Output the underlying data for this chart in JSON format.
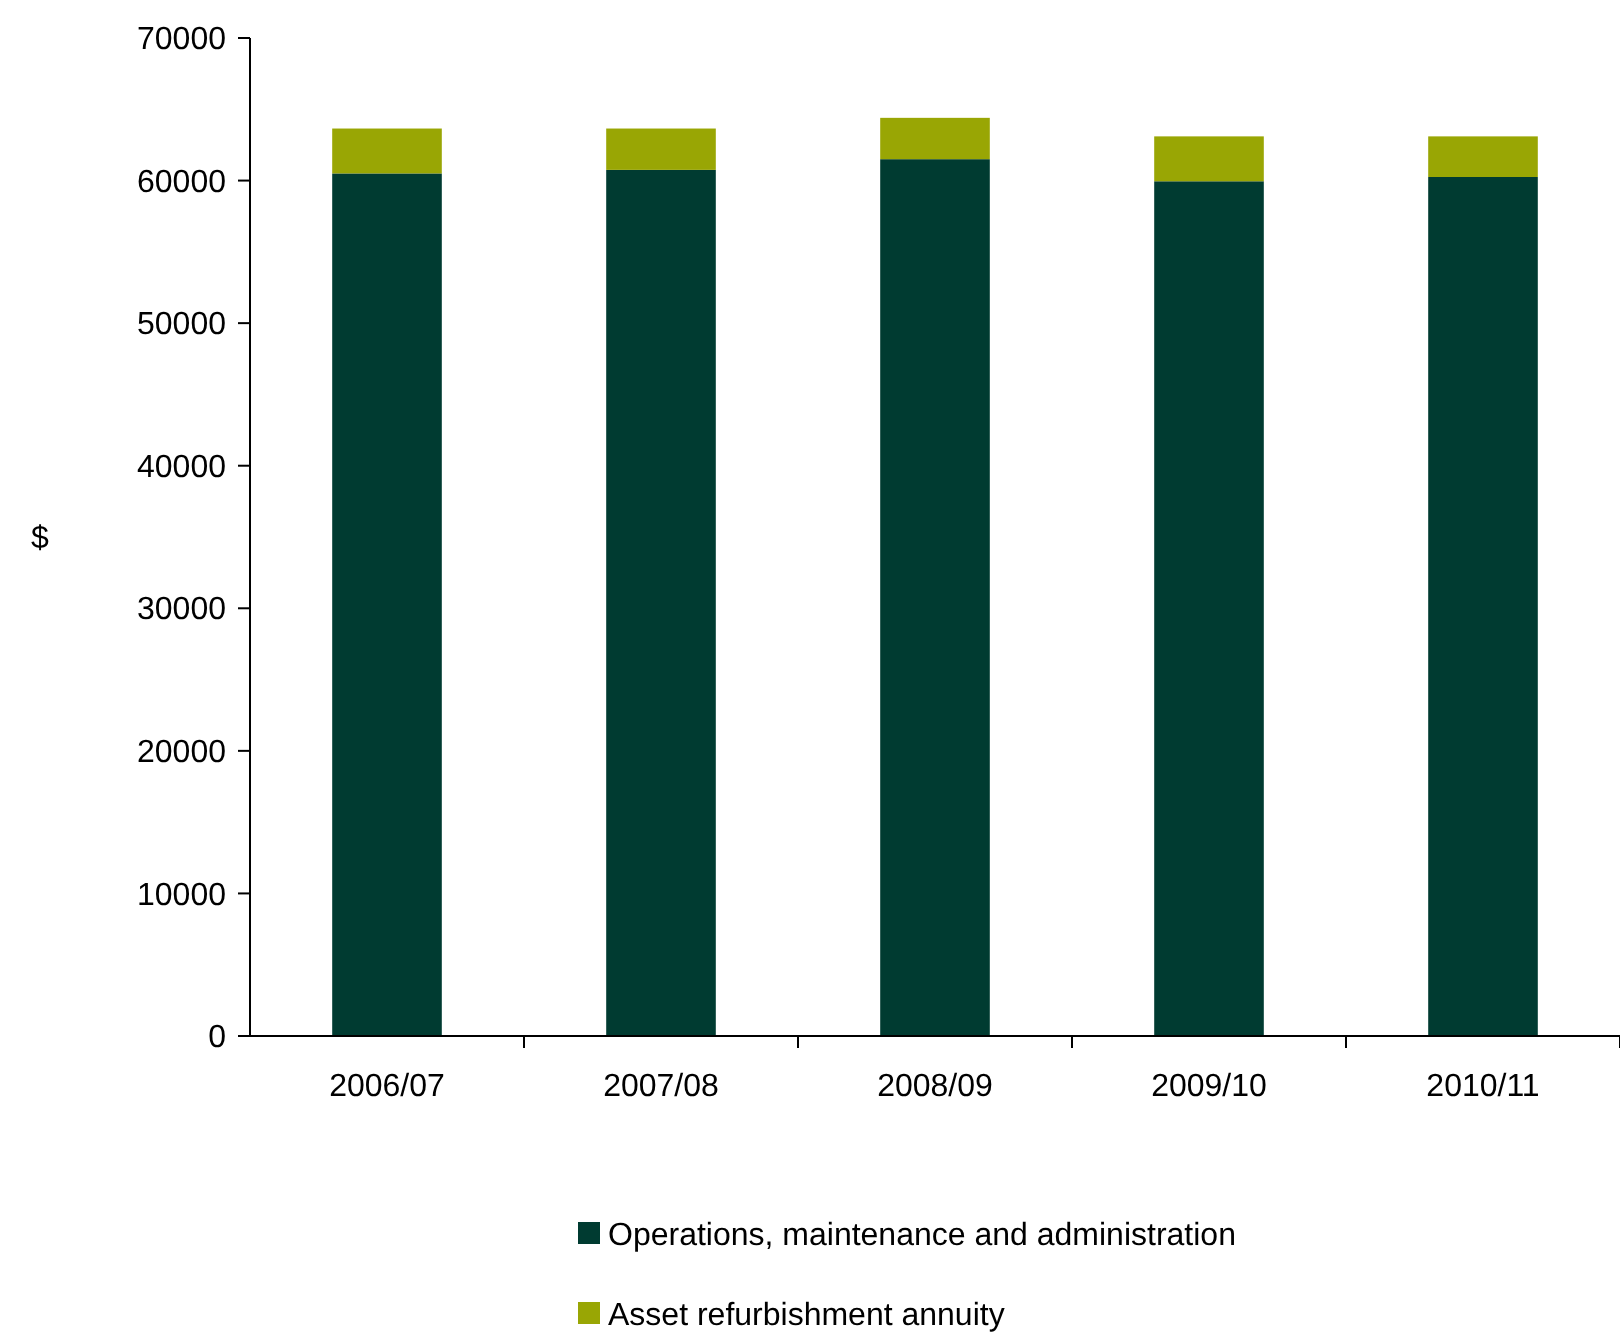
{
  "chart_data": {
    "type": "bar",
    "stacked": true,
    "ylabel": "$",
    "categories": [
      "2006/07",
      "2007/08",
      "2008/09",
      "2009/10",
      "2010/11"
    ],
    "series": [
      {
        "name": "Operations, maintenance and administration",
        "color": "#003b31",
        "values": [
          60500,
          60750,
          61500,
          59950,
          60250
        ]
      },
      {
        "name": "Asset refurbishment annuity",
        "color": "#99a604",
        "values": [
          3150,
          2900,
          2900,
          3150,
          2850
        ]
      }
    ],
    "ylim": [
      0,
      70000
    ],
    "yticks": [
      0,
      10000,
      20000,
      30000,
      40000,
      50000,
      60000,
      70000
    ],
    "grid": false,
    "legend": "bottom"
  }
}
